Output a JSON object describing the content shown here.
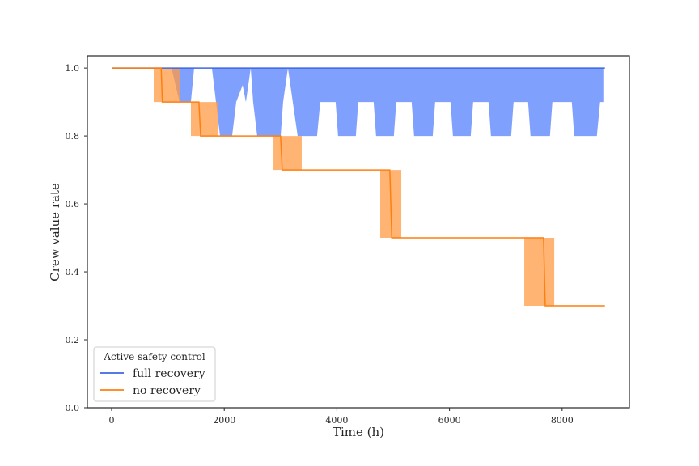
{
  "chart_data": {
    "type": "line",
    "xlabel": "Time (h)",
    "ylabel": "Crew value rate",
    "xlim": [
      -431,
      9195
    ],
    "ylim": [
      0,
      1.036
    ],
    "xticks": [
      0,
      2000,
      4000,
      6000,
      8000
    ],
    "yticks": [
      {
        "value": 0,
        "label": "0.0"
      },
      0.2,
      0.4,
      0.6,
      0.8,
      {
        "value": 1,
        "label": "1.0"
      }
    ],
    "grid": false,
    "legend": {
      "title": "Active safety control",
      "loc": "lower left"
    },
    "series": [
      {
        "name": "full recovery",
        "color": "#3d66e8",
        "band_color": "#6a8ffd",
        "x": [
          0,
          8760
        ],
        "values": [
          1,
          1
        ],
        "band": {
          "x": [
            1063,
            1206,
            1249,
            1407,
            1465,
            1781,
            1925,
            2140,
            2212,
            2327,
            2384,
            2470,
            2513,
            2585,
            3002,
            3045,
            3131,
            3217,
            3303,
            3648,
            3705,
            3978,
            4021,
            4337,
            4380,
            4653,
            4696,
            5012,
            5055,
            5328,
            5371,
            5702,
            5745,
            6018,
            6061,
            6377,
            6420,
            6693,
            6736,
            7095,
            7138,
            7396,
            7439,
            7784,
            7827,
            8172,
            8215,
            8617,
            8674,
            8732
          ],
          "lower": [
            1,
            0.9,
            0.9,
            0.9,
            1,
            1,
            0.8,
            0.8,
            0.9,
            0.95,
            0.9,
            1,
            0.9,
            0.8,
            0.8,
            0.9,
            1,
            0.9,
            0.8,
            0.8,
            0.9,
            0.9,
            0.8,
            0.8,
            0.9,
            0.9,
            0.8,
            0.8,
            0.9,
            0.9,
            0.8,
            0.8,
            0.9,
            0.9,
            0.8,
            0.8,
            0.9,
            0.9,
            0.8,
            0.8,
            0.9,
            0.9,
            0.8,
            0.8,
            0.9,
            0.9,
            0.8,
            0.8,
            0.9,
            0.9
          ],
          "upper": [
            1,
            1,
            1,
            1,
            1,
            1,
            1,
            1,
            1,
            1,
            1,
            1,
            1,
            1,
            1,
            1,
            1,
            1,
            1,
            1,
            1,
            1,
            1,
            1,
            1,
            1,
            1,
            1,
            1,
            1,
            1,
            1,
            1,
            1,
            1,
            1,
            1,
            1,
            1,
            1,
            1,
            1,
            1,
            1,
            1,
            1,
            1,
            1,
            1,
            1
          ]
        }
      },
      {
        "name": "no recovery",
        "color": "#ff7f0e",
        "band_color": "#ff9b45",
        "x": [
          0,
          880,
          900,
          1550,
          1580,
          3000,
          3030,
          4940,
          4975,
          7670,
          7700,
          8760
        ],
        "values": [
          1,
          1,
          0.9,
          0.9,
          0.8,
          0.8,
          0.7,
          0.7,
          0.5,
          0.5,
          0.3,
          0.3
        ],
        "band": {
          "x": [
            747,
            1207,
            null,
            1408,
            1897,
            null,
            2874,
            3376,
            null,
            4770,
            5144,
            null,
            7328,
            7860
          ],
          "lower": [
            0.9,
            0.9,
            null,
            0.8,
            0.8,
            null,
            0.7,
            0.7,
            null,
            0.5,
            0.5,
            null,
            0.3,
            0.3
          ],
          "upper": [
            1,
            1,
            null,
            0.9,
            0.9,
            null,
            0.8,
            0.8,
            null,
            0.7,
            0.7,
            null,
            0.5,
            0.5
          ]
        }
      }
    ]
  }
}
